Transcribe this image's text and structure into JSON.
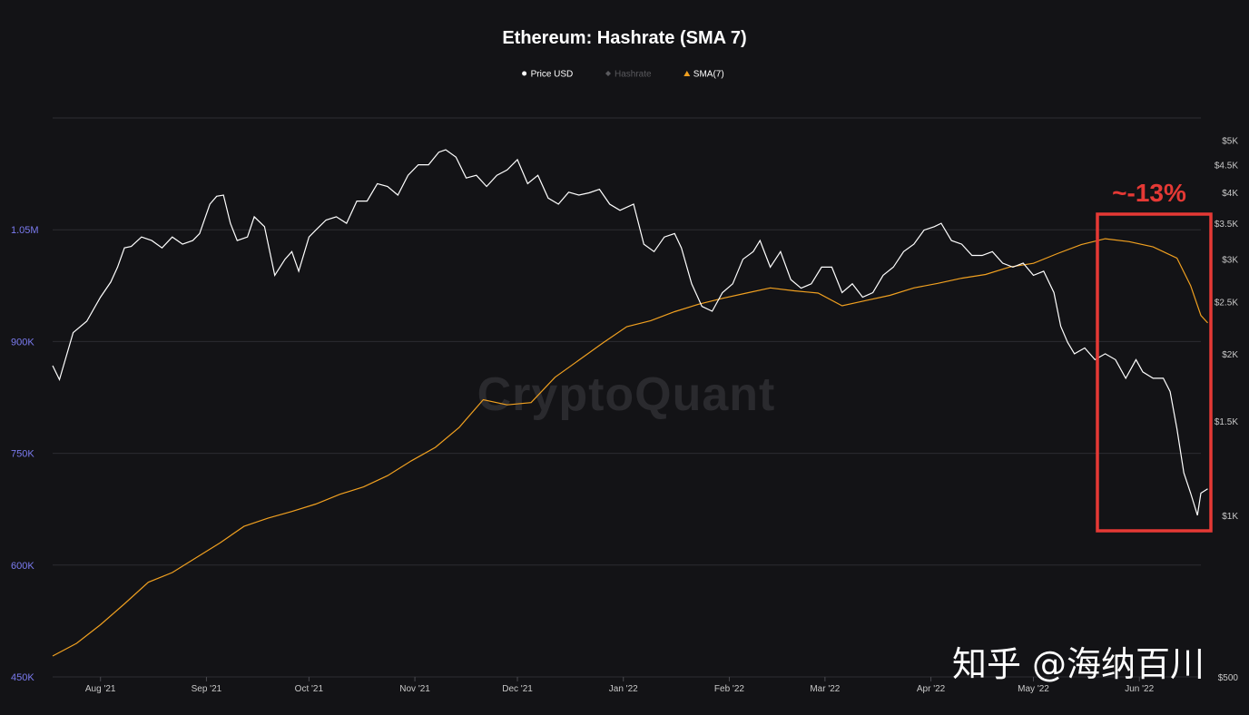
{
  "chart_data": {
    "type": "line",
    "title": "Ethereum: Hashrate (SMA 7)",
    "legend": [
      {
        "name": "Price USD",
        "marker": "circle",
        "color": "#ffffff",
        "dim": false
      },
      {
        "name": "Hashrate",
        "marker": "diamond",
        "color": "#5a5a5e",
        "dim": true
      },
      {
        "name": "SMA(7)",
        "marker": "triangle",
        "color": "#f0a020",
        "dim": false
      }
    ],
    "legend_position": "top-center",
    "x_ticks": [
      "Aug '21",
      "Sep '21",
      "Oct '21",
      "Nov '21",
      "Dec '21",
      "Jan '22",
      "Feb '22",
      "Mar '22",
      "Apr '22",
      "May '22",
      "Jun '22"
    ],
    "x_range": [
      "2021-07-18",
      "2022-06-19"
    ],
    "y_left": {
      "ticks": [
        "450K",
        "600K",
        "750K",
        "900K",
        "1.05M"
      ],
      "values": [
        450000,
        600000,
        750000,
        900000,
        1050000
      ],
      "range": [
        450000,
        1200000
      ]
    },
    "y_right": {
      "scale": "log",
      "ticks": [
        "$500",
        "$1K",
        "$1.5K",
        "$2K",
        "$2.5K",
        "$3K",
        "$3.5K",
        "$4K",
        "$4.5K",
        "$5K"
      ],
      "values": [
        500,
        1000,
        1500,
        2000,
        2500,
        3000,
        3500,
        4000,
        4500,
        5000
      ],
      "range": [
        500,
        5500
      ]
    },
    "grid": true,
    "series": [
      {
        "name": "Price USD",
        "axis": "right",
        "color": "#ffffff",
        "points": [
          [
            "2021-07-18",
            1900
          ],
          [
            "2021-07-20",
            1790
          ],
          [
            "2021-07-24",
            2190
          ],
          [
            "2021-07-28",
            2300
          ],
          [
            "2021-08-01",
            2550
          ],
          [
            "2021-08-04",
            2720
          ],
          [
            "2021-08-06",
            2900
          ],
          [
            "2021-08-08",
            3150
          ],
          [
            "2021-08-10",
            3170
          ],
          [
            "2021-08-13",
            3300
          ],
          [
            "2021-08-16",
            3250
          ],
          [
            "2021-08-19",
            3150
          ],
          [
            "2021-08-22",
            3300
          ],
          [
            "2021-08-25",
            3200
          ],
          [
            "2021-08-28",
            3250
          ],
          [
            "2021-08-30",
            3350
          ],
          [
            "2021-09-02",
            3800
          ],
          [
            "2021-09-04",
            3930
          ],
          [
            "2021-09-06",
            3950
          ],
          [
            "2021-09-08",
            3500
          ],
          [
            "2021-09-10",
            3250
          ],
          [
            "2021-09-13",
            3300
          ],
          [
            "2021-09-15",
            3600
          ],
          [
            "2021-09-18",
            3450
          ],
          [
            "2021-09-21",
            2800
          ],
          [
            "2021-09-24",
            3000
          ],
          [
            "2021-09-26",
            3100
          ],
          [
            "2021-09-28",
            2850
          ],
          [
            "2021-10-01",
            3300
          ],
          [
            "2021-10-03",
            3400
          ],
          [
            "2021-10-06",
            3550
          ],
          [
            "2021-10-09",
            3600
          ],
          [
            "2021-10-12",
            3500
          ],
          [
            "2021-10-15",
            3850
          ],
          [
            "2021-10-18",
            3850
          ],
          [
            "2021-10-21",
            4150
          ],
          [
            "2021-10-24",
            4100
          ],
          [
            "2021-10-27",
            3950
          ],
          [
            "2021-10-30",
            4300
          ],
          [
            "2021-11-02",
            4500
          ],
          [
            "2021-11-05",
            4500
          ],
          [
            "2021-11-08",
            4750
          ],
          [
            "2021-11-10",
            4800
          ],
          [
            "2021-11-13",
            4650
          ],
          [
            "2021-11-16",
            4250
          ],
          [
            "2021-11-19",
            4300
          ],
          [
            "2021-11-22",
            4100
          ],
          [
            "2021-11-25",
            4300
          ],
          [
            "2021-11-28",
            4400
          ],
          [
            "2021-12-01",
            4600
          ],
          [
            "2021-12-04",
            4150
          ],
          [
            "2021-12-07",
            4300
          ],
          [
            "2021-12-10",
            3900
          ],
          [
            "2021-12-13",
            3800
          ],
          [
            "2021-12-16",
            4000
          ],
          [
            "2021-12-19",
            3950
          ],
          [
            "2021-12-22",
            3990
          ],
          [
            "2021-12-25",
            4050
          ],
          [
            "2021-12-28",
            3800
          ],
          [
            "2021-12-31",
            3700
          ],
          [
            "2022-01-04",
            3800
          ],
          [
            "2022-01-07",
            3200
          ],
          [
            "2022-01-10",
            3100
          ],
          [
            "2022-01-13",
            3300
          ],
          [
            "2022-01-16",
            3350
          ],
          [
            "2022-01-18",
            3150
          ],
          [
            "2022-01-21",
            2700
          ],
          [
            "2022-01-24",
            2450
          ],
          [
            "2022-01-27",
            2400
          ],
          [
            "2022-01-30",
            2600
          ],
          [
            "2022-02-02",
            2700
          ],
          [
            "2022-02-05",
            3000
          ],
          [
            "2022-02-08",
            3100
          ],
          [
            "2022-02-10",
            3250
          ],
          [
            "2022-02-13",
            2900
          ],
          [
            "2022-02-16",
            3100
          ],
          [
            "2022-02-19",
            2750
          ],
          [
            "2022-02-22",
            2650
          ],
          [
            "2022-02-25",
            2700
          ],
          [
            "2022-02-28",
            2900
          ],
          [
            "2022-03-03",
            2900
          ],
          [
            "2022-03-06",
            2600
          ],
          [
            "2022-03-09",
            2700
          ],
          [
            "2022-03-12",
            2550
          ],
          [
            "2022-03-15",
            2600
          ],
          [
            "2022-03-18",
            2800
          ],
          [
            "2022-03-21",
            2900
          ],
          [
            "2022-03-24",
            3100
          ],
          [
            "2022-03-27",
            3200
          ],
          [
            "2022-03-30",
            3400
          ],
          [
            "2022-04-02",
            3450
          ],
          [
            "2022-04-04",
            3500
          ],
          [
            "2022-04-07",
            3250
          ],
          [
            "2022-04-10",
            3200
          ],
          [
            "2022-04-13",
            3050
          ],
          [
            "2022-04-16",
            3050
          ],
          [
            "2022-04-19",
            3100
          ],
          [
            "2022-04-22",
            2950
          ],
          [
            "2022-04-25",
            2900
          ],
          [
            "2022-04-28",
            2950
          ],
          [
            "2022-05-01",
            2800
          ],
          [
            "2022-05-04",
            2850
          ],
          [
            "2022-05-07",
            2600
          ],
          [
            "2022-05-09",
            2250
          ],
          [
            "2022-05-11",
            2100
          ],
          [
            "2022-05-13",
            2000
          ],
          [
            "2022-05-16",
            2050
          ],
          [
            "2022-05-19",
            1950
          ],
          [
            "2022-05-22",
            2000
          ],
          [
            "2022-05-25",
            1950
          ],
          [
            "2022-05-28",
            1800
          ],
          [
            "2022-05-31",
            1950
          ],
          [
            "2022-06-02",
            1850
          ],
          [
            "2022-06-05",
            1800
          ],
          [
            "2022-06-08",
            1800
          ],
          [
            "2022-06-10",
            1700
          ],
          [
            "2022-06-12",
            1450
          ],
          [
            "2022-06-14",
            1200
          ],
          [
            "2022-06-16",
            1100
          ],
          [
            "2022-06-18",
            1000
          ],
          [
            "2022-06-19",
            1100
          ],
          [
            "2022-06-21",
            1120
          ]
        ]
      },
      {
        "name": "SMA(7)",
        "axis": "left",
        "color": "#f0a020",
        "points": [
          [
            "2021-07-18",
            478000
          ],
          [
            "2021-07-25",
            495000
          ],
          [
            "2021-08-01",
            520000
          ],
          [
            "2021-08-08",
            548000
          ],
          [
            "2021-08-15",
            577000
          ],
          [
            "2021-08-22",
            590000
          ],
          [
            "2021-08-29",
            610000
          ],
          [
            "2021-09-05",
            630000
          ],
          [
            "2021-09-12",
            652000
          ],
          [
            "2021-09-19",
            663000
          ],
          [
            "2021-09-26",
            672000
          ],
          [
            "2021-10-03",
            682000
          ],
          [
            "2021-10-10",
            695000
          ],
          [
            "2021-10-17",
            705000
          ],
          [
            "2021-10-24",
            720000
          ],
          [
            "2021-10-31",
            740000
          ],
          [
            "2021-11-07",
            758000
          ],
          [
            "2021-11-14",
            785000
          ],
          [
            "2021-11-21",
            822000
          ],
          [
            "2021-11-28",
            815000
          ],
          [
            "2021-12-05",
            818000
          ],
          [
            "2021-12-12",
            852000
          ],
          [
            "2021-12-19",
            875000
          ],
          [
            "2021-12-26",
            898000
          ],
          [
            "2022-01-02",
            920000
          ],
          [
            "2022-01-09",
            928000
          ],
          [
            "2022-01-16",
            940000
          ],
          [
            "2022-01-23",
            950000
          ],
          [
            "2022-01-30",
            958000
          ],
          [
            "2022-02-06",
            965000
          ],
          [
            "2022-02-13",
            972000
          ],
          [
            "2022-02-20",
            968000
          ],
          [
            "2022-02-27",
            965000
          ],
          [
            "2022-03-06",
            948000
          ],
          [
            "2022-03-13",
            955000
          ],
          [
            "2022-03-20",
            962000
          ],
          [
            "2022-03-27",
            972000
          ],
          [
            "2022-04-03",
            978000
          ],
          [
            "2022-04-10",
            985000
          ],
          [
            "2022-04-17",
            990000
          ],
          [
            "2022-04-24",
            1000000
          ],
          [
            "2022-05-01",
            1005000
          ],
          [
            "2022-05-08",
            1018000
          ],
          [
            "2022-05-15",
            1030000
          ],
          [
            "2022-05-22",
            1038000
          ],
          [
            "2022-05-29",
            1034000
          ],
          [
            "2022-06-05",
            1027000
          ],
          [
            "2022-06-12",
            1012000
          ],
          [
            "2022-06-16",
            975000
          ],
          [
            "2022-06-19",
            935000
          ],
          [
            "2022-06-21",
            925000
          ]
        ]
      }
    ],
    "annotation": {
      "text": "~-13%",
      "color": "#e53935"
    },
    "watermark": "CryptoQuant"
  },
  "credit": "知乎 @海纳百川"
}
